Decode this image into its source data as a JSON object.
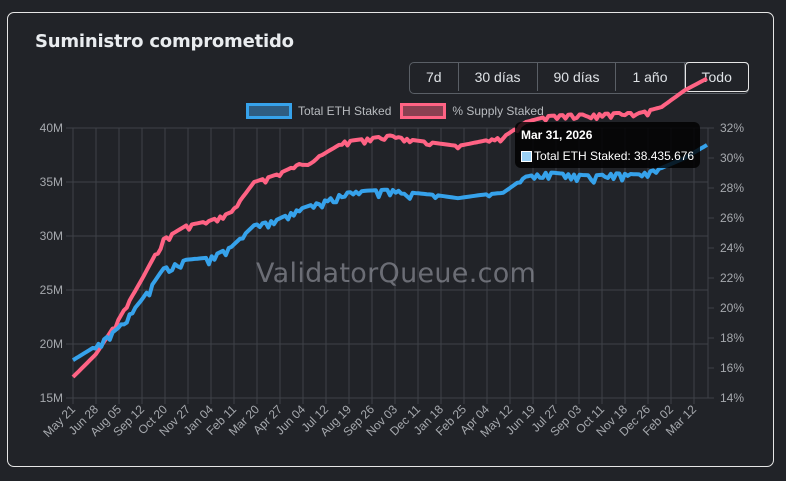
{
  "card": {
    "title": "Suministro comprometido"
  },
  "range_selector": {
    "options": [
      {
        "label": "7d",
        "active": false
      },
      {
        "label": "30 días",
        "active": false
      },
      {
        "label": "90 días",
        "active": false
      },
      {
        "label": "1 año",
        "active": false
      },
      {
        "label": "Todo",
        "active": true
      }
    ]
  },
  "watermark": "ValidatorQueue.com",
  "tooltip": {
    "title": "Mar 31, 2026",
    "label": "Total ETH Staked: 38.435.676",
    "swatch_color": "#9ad0f5"
  },
  "colors": {
    "background": "#212328",
    "grid": "#3e4148",
    "eth_series": "#36a2eb",
    "pct_series": "#ff6384",
    "axis_text": "#a6a9ae"
  },
  "chart_data": {
    "type": "line",
    "title": "Suministro comprometido",
    "xlabel": "",
    "ylabel": "",
    "legend_position": "top",
    "grid": true,
    "categories": [
      "May 21",
      "Jun 28",
      "Aug 05",
      "Sep 12",
      "Oct 20",
      "Nov 27",
      "Jan 04",
      "Feb 11",
      "Mar 20",
      "Apr 27",
      "Jun 04",
      "Jul 12",
      "Aug 19",
      "Sep 26",
      "Nov 03",
      "Dec 11",
      "Jan 18",
      "Feb 25",
      "Apr 04",
      "May 12",
      "Jun 19",
      "Jul 27",
      "Sep 03",
      "Oct 11",
      "Nov 18",
      "Dec 26",
      "Feb 02",
      "Mar 12"
    ],
    "x_end_label": "Mar 31, 2026",
    "y_left": {
      "label": "Total ETH Staked",
      "ticks": [
        "15M",
        "20M",
        "25M",
        "30M",
        "35M",
        "40M"
      ],
      "ylim": [
        15000000,
        40000000
      ]
    },
    "y_right": {
      "label": "% Supply Staked",
      "ticks": [
        "14%",
        "16%",
        "18%",
        "20%",
        "22%",
        "24%",
        "26%",
        "28%",
        "30%",
        "32%"
      ],
      "ylim": [
        14,
        32
      ]
    },
    "series": [
      {
        "name": "Total ETH Staked",
        "axis": "left",
        "color": "#36a2eb",
        "values": [
          18500000,
          19800000,
          21500000,
          24000000,
          27000000,
          27800000,
          28000000,
          29000000,
          31000000,
          31500000,
          32500000,
          33200000,
          34000000,
          34200000,
          34300000,
          34000000,
          33800000,
          33500000,
          33800000,
          34000000,
          35500000,
          35900000,
          35700000,
          35600000,
          35800000,
          35700000,
          36300000,
          37200000,
          38435676
        ]
      },
      {
        "name": "% Supply Staked",
        "axis": "right",
        "color": "#ff6384",
        "values": [
          15.4,
          16.9,
          19.2,
          21.8,
          24.6,
          25.5,
          25.8,
          26.4,
          28.4,
          28.9,
          29.6,
          30.2,
          31.1,
          31.3,
          31.5,
          31.2,
          31.0,
          30.8,
          31.1,
          31.4,
          32.4,
          32.8,
          32.9,
          32.9,
          33.0,
          33.0,
          33.4,
          34.5,
          35.3
        ]
      }
    ]
  }
}
